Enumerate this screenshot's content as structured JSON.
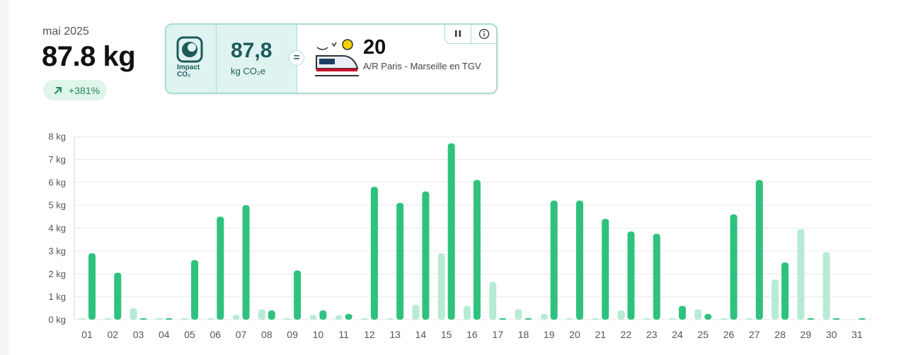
{
  "header": {
    "month": "mai 2025",
    "total": "87.8 kg",
    "change": "+381%"
  },
  "impact_card": {
    "logo_text_1": "Impact",
    "logo_text_2": "CO₂",
    "value": "87,8",
    "unit": "kg CO₂e",
    "equals": "=",
    "equivalent_count": "20",
    "equivalent_label": "A/R Paris - Marseille en TGV",
    "icons": [
      "impact-co2-logo-icon",
      "train-icon",
      "pause-icon",
      "info-icon"
    ]
  },
  "colors": {
    "primary_bar": "#2ec27e",
    "previous_bar": "#b7ebd3",
    "accent_text": "#1e5a5a",
    "badge_bg": "#dff5ea",
    "card_border": "#a8dcd4"
  },
  "chart_data": {
    "type": "bar",
    "categories": [
      "01",
      "02",
      "03",
      "04",
      "05",
      "06",
      "07",
      "08",
      "09",
      "10",
      "11",
      "12",
      "13",
      "14",
      "15",
      "16",
      "17",
      "18",
      "19",
      "20",
      "21",
      "22",
      "23",
      "24",
      "25",
      "26",
      "27",
      "28",
      "29",
      "30",
      "31"
    ],
    "y_ticks": [
      "0 kg",
      "1 kg",
      "2 kg",
      "3 kg",
      "4 kg",
      "5 kg",
      "6 kg",
      "7 kg",
      "8 kg"
    ],
    "ylim": [
      0,
      8
    ],
    "grid": true,
    "series": [
      {
        "color": "#b7ebd3",
        "values": [
          0.05,
          0.05,
          0.5,
          0.05,
          0.05,
          0.05,
          0.2,
          0.45,
          0.05,
          0.2,
          0.2,
          0.05,
          0.05,
          0.65,
          2.9,
          0.6,
          1.65,
          0.45,
          0.25,
          0.05,
          0.05,
          0.4,
          0.05,
          0.05,
          0.45,
          0.05,
          0.05,
          1.75,
          3.95,
          2.95,
          0
        ]
      },
      {
        "color": "#2ec27e",
        "values": [
          2.9,
          2.05,
          0.05,
          0.05,
          2.6,
          4.5,
          5.0,
          0.4,
          2.15,
          0.4,
          0.25,
          5.8,
          5.1,
          5.6,
          7.7,
          6.1,
          0.05,
          0.05,
          5.2,
          5.2,
          4.4,
          3.85,
          3.75,
          0.6,
          0.25,
          4.6,
          6.1,
          2.5,
          0.05,
          0.05,
          0.05
        ]
      }
    ]
  }
}
